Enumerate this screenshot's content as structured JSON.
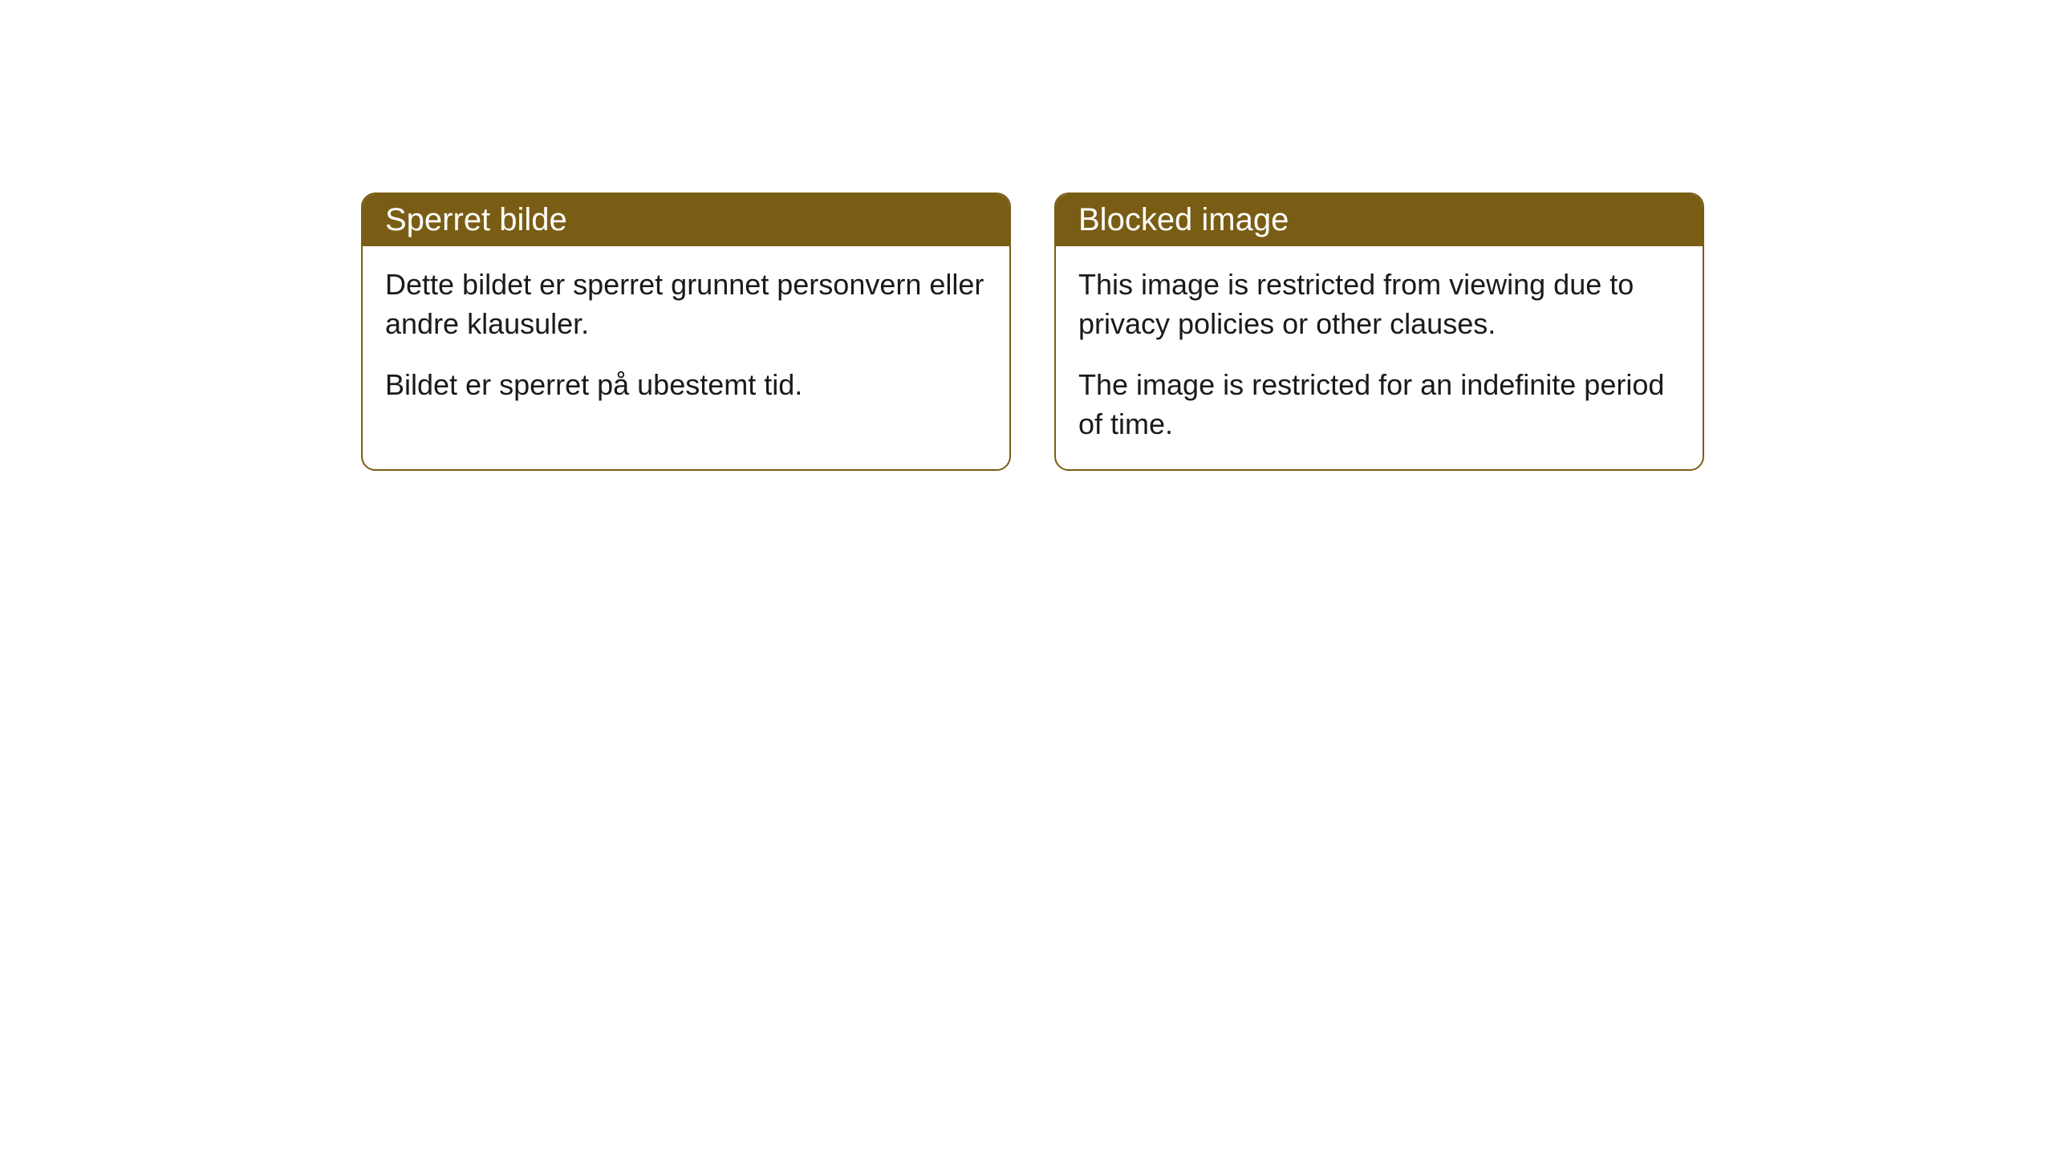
{
  "cards": [
    {
      "title": "Sperret bilde",
      "paragraph1": "Dette bildet er sperret grunnet personvern eller andre klausuler.",
      "paragraph2": "Bildet er sperret på ubestemt tid."
    },
    {
      "title": "Blocked image",
      "paragraph1": "This image is restricted from viewing due to privacy policies or other clauses.",
      "paragraph2": "The image is restricted for an indefinite period of time."
    }
  ],
  "styling": {
    "header_background": "#7a5d14",
    "header_text_color": "#ffffff",
    "border_color": "#7a5d14",
    "body_background": "#ffffff",
    "body_text_color": "#1a1a1a",
    "border_radius": 18,
    "title_fontsize": 40,
    "body_fontsize": 36
  }
}
